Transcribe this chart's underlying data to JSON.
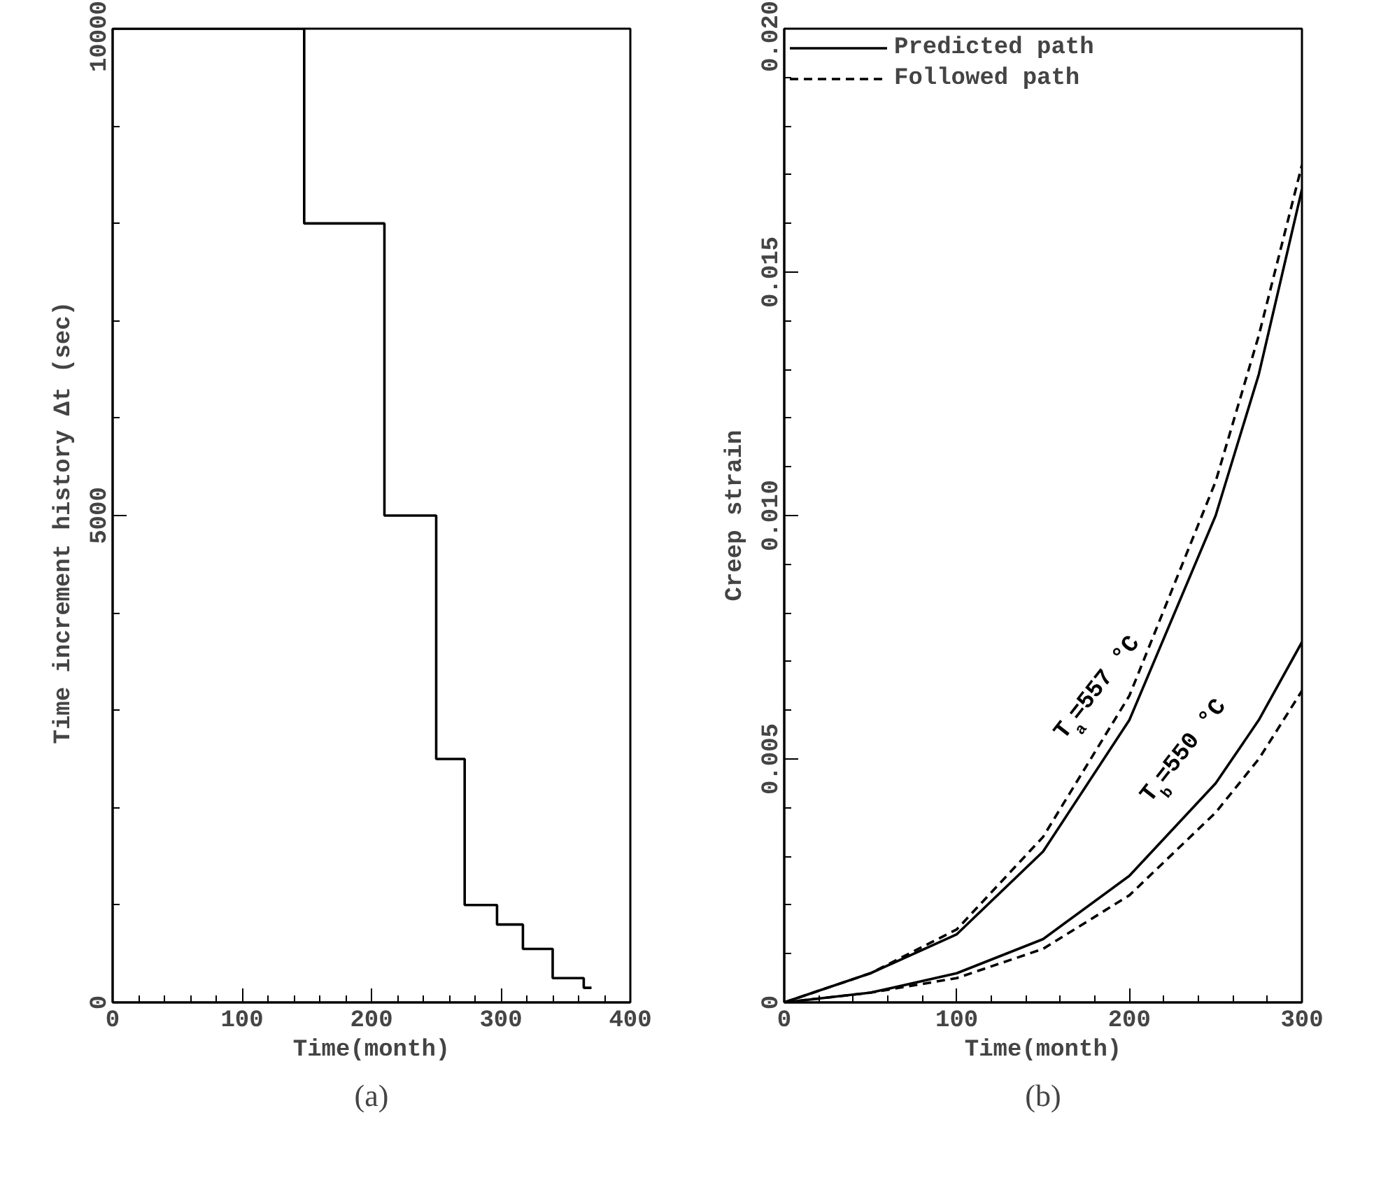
{
  "chart_data": [
    {
      "type": "step",
      "xlabel": "Time(month)",
      "ylabel": "Time increment history  Δt (sec)",
      "x": [
        0,
        148,
        210,
        250,
        272,
        297,
        317,
        340,
        364,
        370
      ],
      "series": [
        {
          "color": "#000000",
          "values": [
            10000,
            8000,
            5000,
            2500,
            1000,
            800,
            550,
            250,
            150,
            150
          ]
        }
      ],
      "xlim": [
        0,
        400
      ],
      "ylim": [
        0,
        10000
      ],
      "xticks": [
        0,
        {
          "value": 20,
          "label": null
        },
        {
          "value": 40,
          "label": null
        },
        {
          "value": 60,
          "label": null
        },
        {
          "value": 80,
          "label": null
        },
        100,
        {
          "value": 120,
          "label": null
        },
        {
          "value": 140,
          "label": null
        },
        {
          "value": 160,
          "label": null
        },
        {
          "value": 180,
          "label": null
        },
        200,
        {
          "value": 220,
          "label": null
        },
        {
          "value": 240,
          "label": null
        },
        {
          "value": 260,
          "label": null
        },
        {
          "value": 280,
          "label": null
        },
        300,
        {
          "value": 320,
          "label": null
        },
        {
          "value": 340,
          "label": null
        },
        {
          "value": 360,
          "label": null
        },
        {
          "value": 380,
          "label": null
        },
        400
      ],
      "yticks": [
        0,
        {
          "value": 1000,
          "label": null
        },
        {
          "value": 2000,
          "label": null
        },
        {
          "value": 3000,
          "label": null
        },
        {
          "value": 4000,
          "label": null
        },
        5000,
        {
          "value": 6000,
          "label": null
        },
        {
          "value": 7000,
          "label": null
        },
        {
          "value": 8000,
          "label": null
        },
        {
          "value": 9000,
          "label": null
        },
        10000
      ],
      "grid": false,
      "legend": false,
      "line_style": "solid",
      "annotations": [
        "(a)"
      ]
    },
    {
      "type": "line",
      "xlabel": "Time(month)",
      "ylabel": "Creep strain",
      "x": [
        0,
        50,
        100,
        150,
        200,
        250,
        275,
        300
      ],
      "series": [
        {
          "name": "Predicted path",
          "color": "#000000",
          "line_style": "solid",
          "values": [
            0,
            0.0006,
            0.0014,
            0.0031,
            0.0058,
            0.01,
            0.0129,
            0.0167
          ]
        },
        {
          "name": "Followed path",
          "color": "#000000",
          "line_style": "dashed",
          "values": [
            0,
            0.0006,
            0.0015,
            0.0034,
            0.0063,
            0.0107,
            0.0137,
            0.0172
          ]
        },
        {
          "color": "#000000",
          "line_style": "solid",
          "values": [
            0,
            0.0002,
            0.0006,
            0.0013,
            0.0026,
            0.0045,
            0.0058,
            0.0074
          ]
        },
        {
          "color": "#000000",
          "line_style": "dashed",
          "values": [
            0,
            0.0002,
            0.0005,
            0.0011,
            0.0022,
            0.0039,
            0.005,
            0.0064
          ]
        }
      ],
      "xlim": [
        0,
        300
      ],
      "ylim": [
        0,
        0.02
      ],
      "xticks": [
        0,
        {
          "value": 20,
          "label": null
        },
        {
          "value": 40,
          "label": null
        },
        {
          "value": 60,
          "label": null
        },
        {
          "value": 80,
          "label": null
        },
        100,
        {
          "value": 120,
          "label": null
        },
        {
          "value": 140,
          "label": null
        },
        {
          "value": 160,
          "label": null
        },
        {
          "value": 180,
          "label": null
        },
        200,
        {
          "value": 220,
          "label": null
        },
        {
          "value": 240,
          "label": null
        },
        {
          "value": 260,
          "label": null
        },
        {
          "value": 280,
          "label": null
        },
        300
      ],
      "yticks": [
        0,
        {
          "value": 0.001,
          "label": null
        },
        {
          "value": 0.002,
          "label": null
        },
        {
          "value": 0.003,
          "label": null
        },
        {
          "value": 0.004,
          "label": null
        },
        {
          "value": 0.005,
          "label": "0.005"
        },
        {
          "value": 0.006,
          "label": null
        },
        {
          "value": 0.007,
          "label": null
        },
        {
          "value": 0.008,
          "label": null
        },
        {
          "value": 0.009,
          "label": null
        },
        {
          "value": 0.01,
          "label": "0.010"
        },
        {
          "value": 0.011,
          "label": null
        },
        {
          "value": 0.012,
          "label": null
        },
        {
          "value": 0.013,
          "label": null
        },
        {
          "value": 0.014,
          "label": null
        },
        {
          "value": 0.015,
          "label": "0.015"
        },
        {
          "value": 0.016,
          "label": null
        },
        {
          "value": 0.017,
          "label": null
        },
        {
          "value": 0.018,
          "label": null
        },
        {
          "value": 0.019,
          "label": null
        },
        {
          "value": 0.02,
          "label": "0.020"
        }
      ],
      "grid": false,
      "legend": "top left",
      "annotations": [
        {
          "text": "T$_{a}$=557 °C",
          "x": 200,
          "y": 0.0058
        },
        {
          "text": "T$_{b}$=550 °C",
          "x": 250,
          "y": 0.0045
        },
        "(b)"
      ]
    }
  ]
}
